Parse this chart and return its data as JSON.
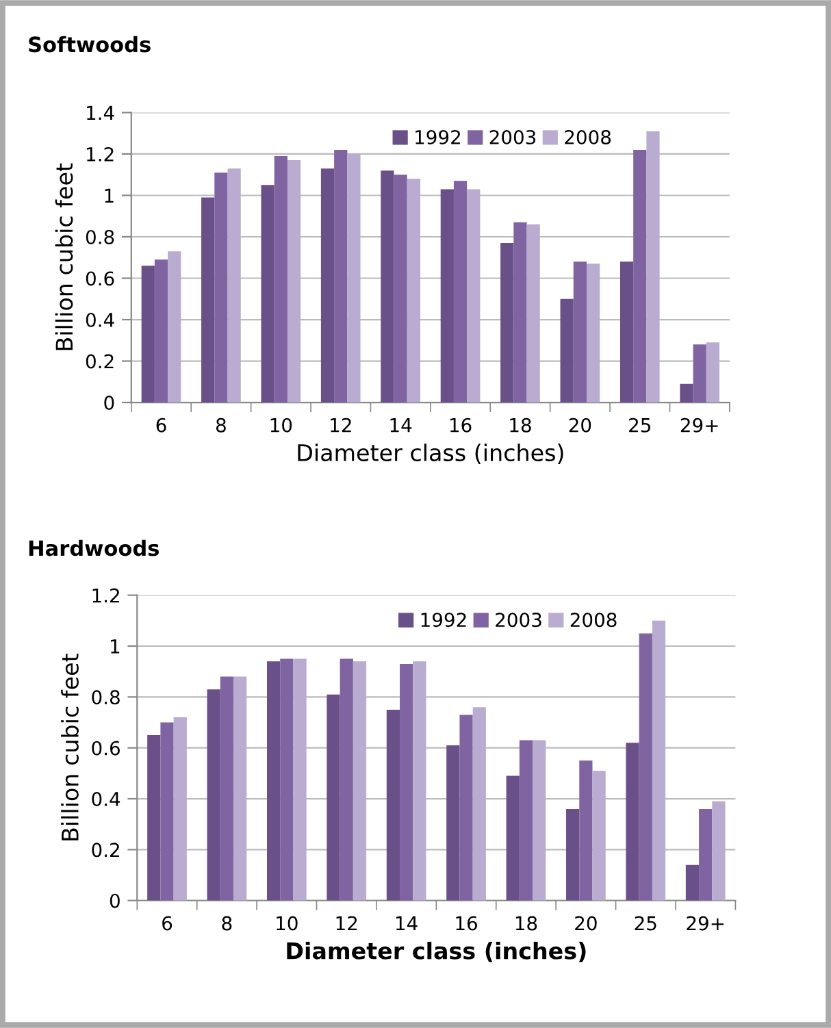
{
  "chart_data": [
    {
      "type": "bar",
      "title": "Softwoods",
      "xlabel": "Diameter class (inches)",
      "ylabel": "Billion cubic feet",
      "categories": [
        "6",
        "8",
        "10",
        "12",
        "14",
        "16",
        "18",
        "20",
        "25",
        "29+"
      ],
      "ylim": [
        0,
        1.4
      ],
      "yticks": [
        0,
        0.2,
        0.4,
        0.6,
        0.8,
        1,
        1.2,
        1.4
      ],
      "grid": "y",
      "legend": "top",
      "series": [
        {
          "name": "1992",
          "color": "#6a5088",
          "values": [
            0.66,
            0.99,
            1.05,
            1.13,
            1.12,
            1.03,
            0.77,
            0.5,
            0.68,
            0.09
          ]
        },
        {
          "name": "2003",
          "color": "#8064a2",
          "values": [
            0.69,
            1.11,
            1.19,
            1.22,
            1.1,
            1.07,
            0.87,
            0.68,
            1.22,
            0.28
          ]
        },
        {
          "name": "2008",
          "color": "#b9acd0",
          "values": [
            0.73,
            1.13,
            1.17,
            1.2,
            1.08,
            1.03,
            0.86,
            0.67,
            1.31,
            0.29
          ]
        }
      ]
    },
    {
      "type": "bar",
      "title": "Hardwoods",
      "xlabel": "Diameter class (inches)",
      "ylabel": "Billion cubic feet",
      "categories": [
        "6",
        "8",
        "10",
        "12",
        "14",
        "16",
        "18",
        "20",
        "25",
        "29+"
      ],
      "ylim": [
        0,
        1.2
      ],
      "yticks": [
        0,
        0.2,
        0.4,
        0.6,
        0.8,
        1,
        1.2
      ],
      "grid": "y",
      "legend": "top",
      "series": [
        {
          "name": "1992",
          "color": "#6a5088",
          "values": [
            0.65,
            0.83,
            0.94,
            0.81,
            0.75,
            0.61,
            0.49,
            0.36,
            0.62,
            0.14
          ]
        },
        {
          "name": "2003",
          "color": "#8064a2",
          "values": [
            0.7,
            0.88,
            0.95,
            0.95,
            0.93,
            0.73,
            0.63,
            0.55,
            1.05,
            0.36
          ]
        },
        {
          "name": "2008",
          "color": "#b9acd0",
          "values": [
            0.72,
            0.88,
            0.95,
            0.94,
            0.94,
            0.76,
            0.63,
            0.51,
            1.1,
            0.39
          ]
        }
      ]
    }
  ]
}
